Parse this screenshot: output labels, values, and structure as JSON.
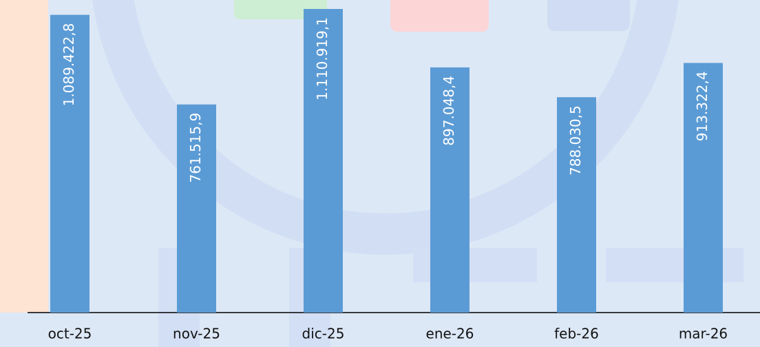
{
  "chart_data": {
    "type": "bar",
    "categories": [
      "oct-25",
      "nov-25",
      "dic-25",
      "ene-26",
      "feb-26",
      "mar-26"
    ],
    "values": [
      1089422.8,
      761515.9,
      1110919.1,
      897048.4,
      788030.5,
      913322.4
    ],
    "value_labels": [
      "1.089.422,8",
      "761.515,9",
      "1.110.919,1",
      "897.048,4",
      "788.030,5",
      "913.322,4"
    ],
    "color": "#5b9bd5"
  }
}
